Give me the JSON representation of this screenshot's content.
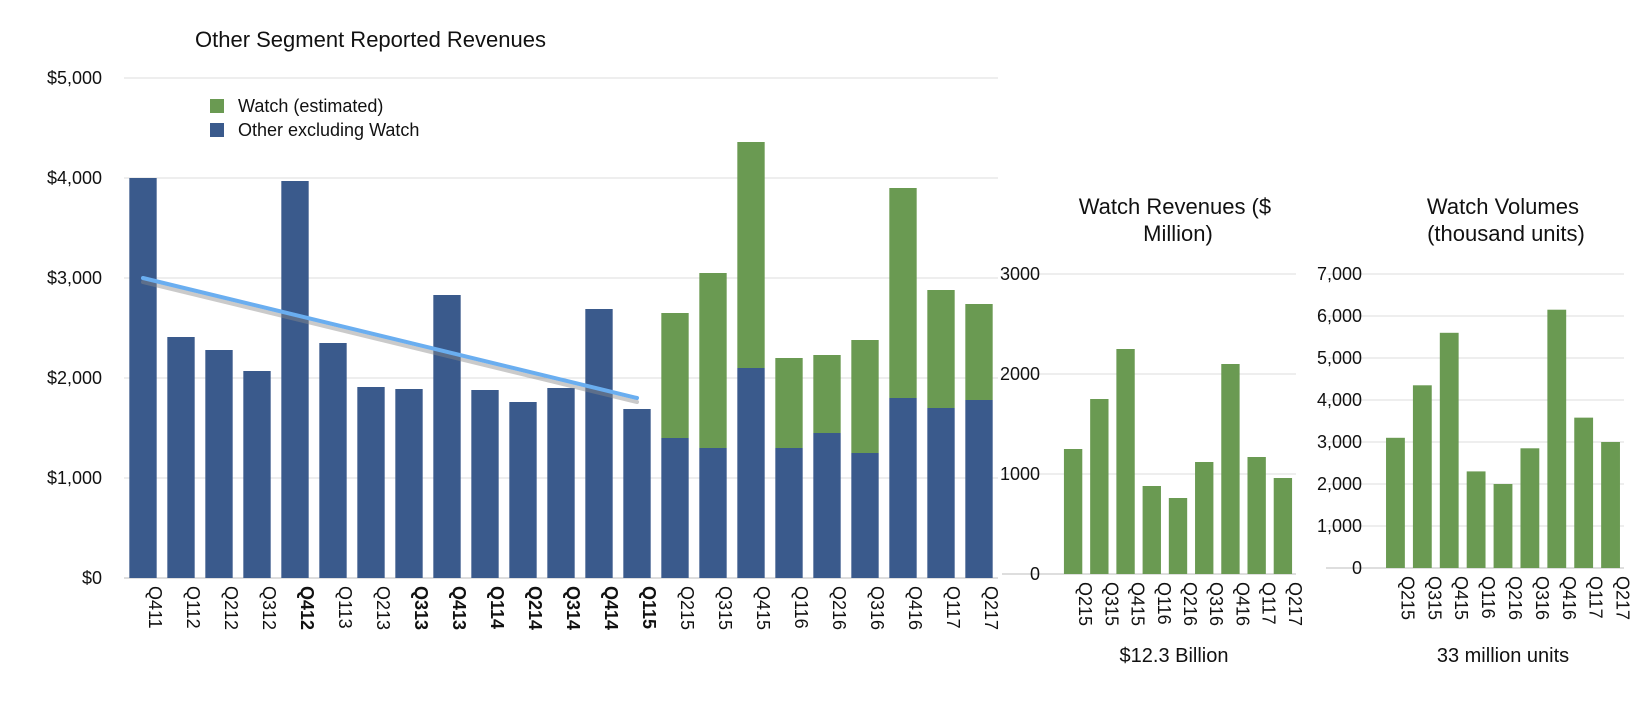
{
  "chart_data": [
    {
      "type": "bar",
      "stacked": true,
      "title": "Other Segment Reported Revenues",
      "categories": [
        "Q411",
        "Q112",
        "Q212",
        "Q312",
        "Q412",
        "Q113",
        "Q213",
        "Q313",
        "Q413",
        "Q114",
        "Q214",
        "Q314",
        "Q414",
        "Q115",
        "Q215",
        "Q315",
        "Q415",
        "Q116",
        "Q216",
        "Q316",
        "Q416",
        "Q117",
        "Q217"
      ],
      "series": [
        {
          "name": "Other excluding Watch",
          "color": "#3a5a8c",
          "values": [
            4000,
            2410,
            2280,
            2070,
            3970,
            2350,
            1910,
            1890,
            2830,
            1880,
            1760,
            1900,
            2690,
            1690,
            1400,
            1300,
            2100,
            1300,
            1450,
            1250,
            1800,
            1700,
            1780
          ]
        },
        {
          "name": "Watch (estimated)",
          "color": "#6a9a52",
          "values": [
            0,
            0,
            0,
            0,
            0,
            0,
            0,
            0,
            0,
            0,
            0,
            0,
            0,
            0,
            1250,
            1750,
            2260,
            900,
            780,
            1130,
            2100,
            1180,
            960
          ]
        }
      ],
      "trend_line": {
        "color": "#6aaef0",
        "from": {
          "x": "Q411",
          "y": 3000
        },
        "to": {
          "x": "Q115",
          "y": 1800
        }
      },
      "ylim": [
        0,
        5000
      ],
      "yticks": [
        "$0",
        "$1,000",
        "$2,000",
        "$3,000",
        "$4,000",
        "$5,000"
      ],
      "grid": true,
      "legend": "top-left",
      "xlabel": "",
      "ylabel": ""
    },
    {
      "type": "bar",
      "title": "Watch Revenues ($ Million)",
      "categories": [
        "Q215",
        "Q315",
        "Q415",
        "Q116",
        "Q216",
        "Q316",
        "Q416",
        "Q117",
        "Q217"
      ],
      "values": [
        1250,
        1750,
        2250,
        880,
        760,
        1120,
        2100,
        1170,
        960
      ],
      "color": "#6a9a52",
      "ylim": [
        0,
        3000
      ],
      "yticks": [
        "0",
        "1000",
        "2000",
        "3000"
      ],
      "grid": true,
      "footer": "$12.3 Billion"
    },
    {
      "type": "bar",
      "title": "Watch Volumes (thousand units)",
      "categories": [
        "Q215",
        "Q315",
        "Q415",
        "Q116",
        "Q216",
        "Q316",
        "Q416",
        "Q117",
        "Q217"
      ],
      "values": [
        3100,
        4350,
        5600,
        2300,
        2000,
        2850,
        6150,
        3580,
        3000
      ],
      "color": "#6a9a52",
      "ylim": [
        0,
        7000
      ],
      "yticks": [
        "0",
        "1,000",
        "2,000",
        "3,000",
        "4,000",
        "5,000",
        "6,000",
        "7,000"
      ],
      "grid": true,
      "footer": "33 million units"
    }
  ]
}
